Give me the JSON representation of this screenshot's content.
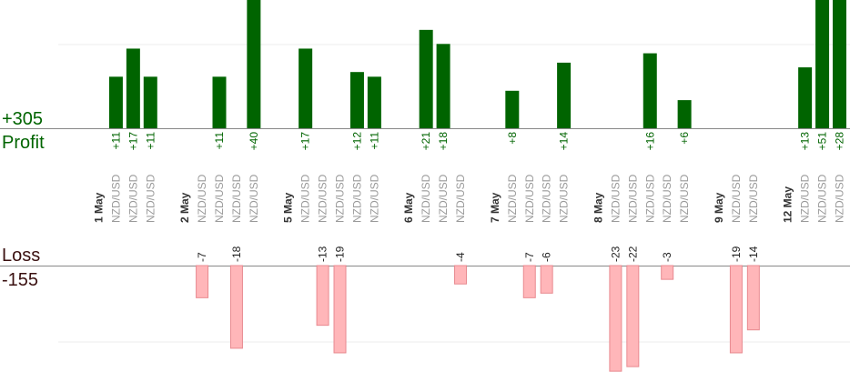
{
  "chart_data": {
    "type": "bar",
    "profit": {
      "total": "+305",
      "label": "Profit",
      "color": "#006400"
    },
    "loss": {
      "total": "-155",
      "label": "Loss",
      "color": "#ffb6b9",
      "border": "#e88a90"
    },
    "slots": [
      {
        "label": "1 May",
        "date": true
      },
      {
        "label": "NZD/USD",
        "value": 11
      },
      {
        "label": "NZD/USD",
        "value": 17
      },
      {
        "label": "NZD/USD",
        "value": 11
      },
      {
        "label": "",
        "gap": true
      },
      {
        "label": "2 May",
        "date": true
      },
      {
        "label": "NZD/USD",
        "value": -7
      },
      {
        "label": "NZD/USD",
        "value": 11
      },
      {
        "label": "NZD/USD",
        "value": -18
      },
      {
        "label": "NZD/USD",
        "value": 40
      },
      {
        "label": "",
        "gap": true
      },
      {
        "label": "5 May",
        "date": true
      },
      {
        "label": "NZD/USD",
        "value": 17
      },
      {
        "label": "NZD/USD",
        "value": -13
      },
      {
        "label": "NZD/USD",
        "value": -19
      },
      {
        "label": "NZD/USD",
        "value": 12
      },
      {
        "label": "NZD/USD",
        "value": 11
      },
      {
        "label": "",
        "gap": true
      },
      {
        "label": "6 May",
        "date": true
      },
      {
        "label": "NZD/USD",
        "value": 21
      },
      {
        "label": "NZD/USD",
        "value": 18
      },
      {
        "label": "NZD/USD",
        "value": -4
      },
      {
        "label": "",
        "gap": true
      },
      {
        "label": "7 May",
        "date": true
      },
      {
        "label": "NZD/USD",
        "value": 8
      },
      {
        "label": "NZD/USD",
        "value": -7
      },
      {
        "label": "NZD/USD",
        "value": -6
      },
      {
        "label": "NZD/USD",
        "value": 14
      },
      {
        "label": "",
        "gap": true
      },
      {
        "label": "8 May",
        "date": true
      },
      {
        "label": "NZD/USD",
        "value": -23
      },
      {
        "label": "NZD/USD",
        "value": -22
      },
      {
        "label": "NZD/USD",
        "value": 16
      },
      {
        "label": "NZD/USD",
        "value": -3
      },
      {
        "label": "NZD/USD",
        "value": 6
      },
      {
        "label": "",
        "gap": true
      },
      {
        "label": "9 May",
        "date": true
      },
      {
        "label": "NZD/USD",
        "value": -19
      },
      {
        "label": "NZD/USD",
        "value": -14
      },
      {
        "label": "",
        "gap": true
      },
      {
        "label": "12 May",
        "date": true
      },
      {
        "label": "NZD/USD",
        "value": 13
      },
      {
        "label": "NZD/USD",
        "value": 51
      },
      {
        "label": "NZD/USD",
        "value": 28
      }
    ]
  }
}
